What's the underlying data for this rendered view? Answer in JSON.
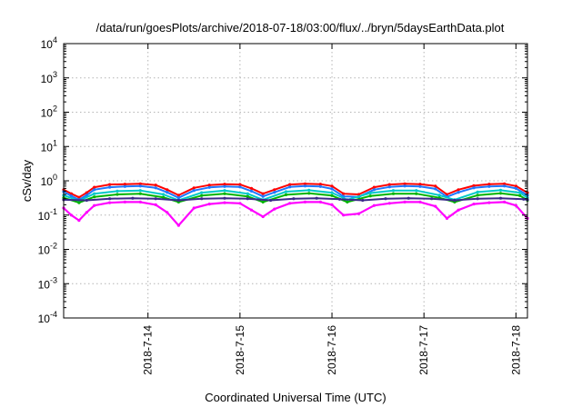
{
  "chart_data": {
    "type": "line",
    "title": "/data/run/goesPlots/archive/2018-07-18/03:00/flux/../bryn/5daysEarthData.plot",
    "xlabel": "Coordinated Universal Time (UTC)",
    "ylabel": "cSv/day",
    "yscale": "log",
    "ylim": [
      0.0001,
      10000
    ],
    "xlim": [
      "2018-07-13 02:00",
      "2018-07-18 03:00"
    ],
    "grid": true,
    "y_ticks": [
      {
        "value": 0.0001,
        "base": "10",
        "exp": "-4"
      },
      {
        "value": 0.001,
        "base": "10",
        "exp": "-3"
      },
      {
        "value": 0.01,
        "base": "10",
        "exp": "-2"
      },
      {
        "value": 0.1,
        "base": "10",
        "exp": "-1"
      },
      {
        "value": 1,
        "base": "10",
        "exp": "0"
      },
      {
        "value": 10,
        "base": "10",
        "exp": "1"
      },
      {
        "value": 100,
        "base": "10",
        "exp": "2"
      },
      {
        "value": 1000,
        "base": "10",
        "exp": "3"
      },
      {
        "value": 10000,
        "base": "10",
        "exp": "4"
      }
    ],
    "x_ticks": [
      {
        "value": "2018-07-14 00:00",
        "label": "2018-7-14"
      },
      {
        "value": "2018-07-15 00:00",
        "label": "2018-7-15"
      },
      {
        "value": "2018-07-16 00:00",
        "label": "2018-7-16"
      },
      {
        "value": "2018-07-17 00:00",
        "label": "2018-7-17"
      },
      {
        "value": "2018-07-18 00:00",
        "label": "2018-7-18"
      }
    ],
    "series": [
      {
        "color": "#ff0000",
        "x": [
          "2018-07-13 02:00",
          "2018-07-13 04:00",
          "2018-07-13 06:00",
          "2018-07-13 08:00",
          "2018-07-13 10:00",
          "2018-07-13 14:00",
          "2018-07-13 18:00",
          "2018-07-13 22:00",
          "2018-07-14 02:00",
          "2018-07-14 05:00",
          "2018-07-14 08:00",
          "2018-07-14 12:00",
          "2018-07-14 16:00",
          "2018-07-14 20:00",
          "2018-07-15 00:00",
          "2018-07-15 03:00",
          "2018-07-15 06:00",
          "2018-07-15 09:00",
          "2018-07-15 13:00",
          "2018-07-15 17:00",
          "2018-07-15 21:00",
          "2018-07-16 00:00",
          "2018-07-16 03:00",
          "2018-07-16 07:00",
          "2018-07-16 11:00",
          "2018-07-16 15:00",
          "2018-07-16 19:00",
          "2018-07-16 23:00",
          "2018-07-17 03:00",
          "2018-07-17 06:00",
          "2018-07-17 09:00",
          "2018-07-17 13:00",
          "2018-07-17 17:00",
          "2018-07-17 21:00",
          "2018-07-18 00:00",
          "2018-07-18 03:00"
        ],
        "values": [
          0.55,
          0.42,
          0.33,
          0.45,
          0.65,
          0.78,
          0.8,
          0.82,
          0.75,
          0.55,
          0.38,
          0.62,
          0.75,
          0.8,
          0.78,
          0.6,
          0.42,
          0.55,
          0.78,
          0.82,
          0.8,
          0.7,
          0.42,
          0.4,
          0.65,
          0.78,
          0.82,
          0.8,
          0.7,
          0.4,
          0.55,
          0.72,
          0.8,
          0.82,
          0.7,
          0.45
        ]
      },
      {
        "color": "#1f78ff",
        "x": [
          "2018-07-13 02:00",
          "2018-07-13 04:00",
          "2018-07-13 06:00",
          "2018-07-13 08:00",
          "2018-07-13 10:00",
          "2018-07-13 14:00",
          "2018-07-13 18:00",
          "2018-07-13 22:00",
          "2018-07-14 02:00",
          "2018-07-14 05:00",
          "2018-07-14 08:00",
          "2018-07-14 12:00",
          "2018-07-14 16:00",
          "2018-07-14 20:00",
          "2018-07-15 00:00",
          "2018-07-15 03:00",
          "2018-07-15 06:00",
          "2018-07-15 09:00",
          "2018-07-15 13:00",
          "2018-07-15 17:00",
          "2018-07-15 21:00",
          "2018-07-16 00:00",
          "2018-07-16 03:00",
          "2018-07-16 07:00",
          "2018-07-16 11:00",
          "2018-07-16 15:00",
          "2018-07-16 19:00",
          "2018-07-16 23:00",
          "2018-07-17 03:00",
          "2018-07-17 06:00",
          "2018-07-17 09:00",
          "2018-07-17 13:00",
          "2018-07-17 17:00",
          "2018-07-17 21:00",
          "2018-07-18 00:00",
          "2018-07-18 03:00"
        ],
        "values": [
          0.48,
          0.36,
          0.28,
          0.38,
          0.55,
          0.65,
          0.68,
          0.7,
          0.62,
          0.46,
          0.32,
          0.52,
          0.64,
          0.68,
          0.66,
          0.5,
          0.35,
          0.46,
          0.66,
          0.7,
          0.68,
          0.58,
          0.35,
          0.34,
          0.55,
          0.66,
          0.7,
          0.68,
          0.58,
          0.34,
          0.46,
          0.62,
          0.68,
          0.7,
          0.6,
          0.38
        ]
      },
      {
        "color": "#00c8c8",
        "x": [
          "2018-07-13 02:00",
          "2018-07-13 06:00",
          "2018-07-13 10:00",
          "2018-07-13 16:00",
          "2018-07-13 22:00",
          "2018-07-14 04:00",
          "2018-07-14 08:00",
          "2018-07-14 14:00",
          "2018-07-14 20:00",
          "2018-07-15 02:00",
          "2018-07-15 06:00",
          "2018-07-15 12:00",
          "2018-07-15 18:00",
          "2018-07-16 00:00",
          "2018-07-16 04:00",
          "2018-07-16 10:00",
          "2018-07-16 16:00",
          "2018-07-16 22:00",
          "2018-07-17 04:00",
          "2018-07-17 08:00",
          "2018-07-17 14:00",
          "2018-07-17 20:00",
          "2018-07-18 01:00",
          "2018-07-18 03:00"
        ],
        "values": [
          0.38,
          0.26,
          0.42,
          0.5,
          0.52,
          0.4,
          0.27,
          0.45,
          0.52,
          0.42,
          0.28,
          0.48,
          0.53,
          0.45,
          0.28,
          0.44,
          0.52,
          0.52,
          0.38,
          0.28,
          0.47,
          0.53,
          0.45,
          0.32
        ]
      },
      {
        "color": "#00b400",
        "x": [
          "2018-07-13 02:00",
          "2018-07-13 06:00",
          "2018-07-13 10:00",
          "2018-07-13 16:00",
          "2018-07-13 22:00",
          "2018-07-14 04:00",
          "2018-07-14 08:00",
          "2018-07-14 14:00",
          "2018-07-14 20:00",
          "2018-07-15 02:00",
          "2018-07-15 06:00",
          "2018-07-15 12:00",
          "2018-07-15 18:00",
          "2018-07-16 00:00",
          "2018-07-16 04:00",
          "2018-07-16 10:00",
          "2018-07-16 16:00",
          "2018-07-16 22:00",
          "2018-07-17 04:00",
          "2018-07-17 08:00",
          "2018-07-17 14:00",
          "2018-07-17 20:00",
          "2018-07-18 01:00",
          "2018-07-18 03:00"
        ],
        "values": [
          0.32,
          0.23,
          0.34,
          0.4,
          0.42,
          0.33,
          0.24,
          0.37,
          0.42,
          0.35,
          0.24,
          0.39,
          0.43,
          0.37,
          0.24,
          0.36,
          0.42,
          0.42,
          0.32,
          0.24,
          0.38,
          0.43,
          0.37,
          0.27
        ]
      },
      {
        "color": "#3a2a8a",
        "x": [
          "2018-07-13 02:00",
          "2018-07-13 08:00",
          "2018-07-13 14:00",
          "2018-07-13 20:00",
          "2018-07-14 02:00",
          "2018-07-14 08:00",
          "2018-07-14 14:00",
          "2018-07-14 20:00",
          "2018-07-15 02:00",
          "2018-07-15 08:00",
          "2018-07-15 14:00",
          "2018-07-15 20:00",
          "2018-07-16 02:00",
          "2018-07-16 08:00",
          "2018-07-16 14:00",
          "2018-07-16 20:00",
          "2018-07-17 02:00",
          "2018-07-17 08:00",
          "2018-07-17 14:00",
          "2018-07-17 20:00",
          "2018-07-18 02:00",
          "2018-07-18 03:00"
        ],
        "values": [
          0.28,
          0.27,
          0.3,
          0.31,
          0.3,
          0.27,
          0.3,
          0.31,
          0.3,
          0.27,
          0.3,
          0.31,
          0.29,
          0.27,
          0.3,
          0.31,
          0.3,
          0.27,
          0.3,
          0.31,
          0.29,
          0.28
        ]
      },
      {
        "color": "#ff00ff",
        "x": [
          "2018-07-13 02:00",
          "2018-07-13 04:00",
          "2018-07-13 06:00",
          "2018-07-13 08:00",
          "2018-07-13 10:00",
          "2018-07-13 14:00",
          "2018-07-13 18:00",
          "2018-07-13 22:00",
          "2018-07-14 02:00",
          "2018-07-14 05:00",
          "2018-07-14 08:00",
          "2018-07-14 12:00",
          "2018-07-14 16:00",
          "2018-07-14 20:00",
          "2018-07-15 00:00",
          "2018-07-15 03:00",
          "2018-07-15 06:00",
          "2018-07-15 09:00",
          "2018-07-15 13:00",
          "2018-07-15 17:00",
          "2018-07-15 21:00",
          "2018-07-16 00:00",
          "2018-07-16 03:00",
          "2018-07-16 07:00",
          "2018-07-16 11:00",
          "2018-07-16 15:00",
          "2018-07-16 19:00",
          "2018-07-16 23:00",
          "2018-07-17 03:00",
          "2018-07-17 06:00",
          "2018-07-17 09:00",
          "2018-07-17 13:00",
          "2018-07-17 17:00",
          "2018-07-17 21:00",
          "2018-07-18 00:00",
          "2018-07-18 03:00"
        ],
        "values": [
          0.16,
          0.1,
          0.07,
          0.12,
          0.19,
          0.23,
          0.24,
          0.24,
          0.2,
          0.12,
          0.05,
          0.16,
          0.21,
          0.23,
          0.22,
          0.14,
          0.09,
          0.15,
          0.22,
          0.24,
          0.24,
          0.2,
          0.1,
          0.11,
          0.19,
          0.22,
          0.24,
          0.24,
          0.18,
          0.08,
          0.14,
          0.21,
          0.23,
          0.24,
          0.19,
          0.08
        ]
      }
    ]
  }
}
